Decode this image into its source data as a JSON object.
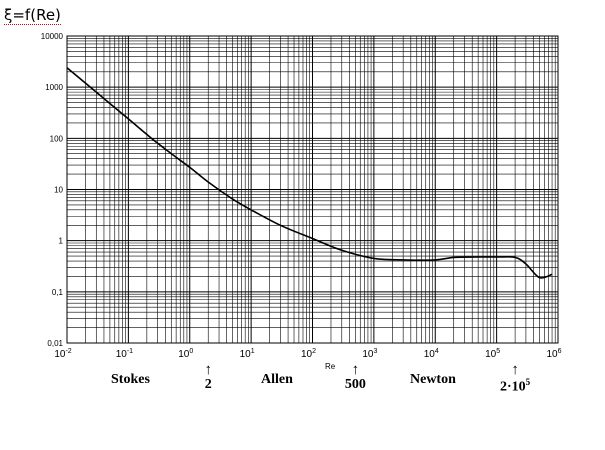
{
  "chart_data": {
    "type": "line",
    "title": "ξ=f(Re)",
    "xlabel": "Re",
    "ylabel": "",
    "x_scale": "log",
    "y_scale": "log",
    "xlim": [
      0.01,
      1000000
    ],
    "ylim": [
      0.01,
      10000
    ],
    "grid": true,
    "x_ticks": [
      {
        "base": "10",
        "exp": "-2"
      },
      {
        "base": "10",
        "exp": "-1"
      },
      {
        "base": "10",
        "exp": "0"
      },
      {
        "base": "10",
        "exp": "1"
      },
      {
        "base": "10",
        "exp": "2"
      },
      {
        "base": "10",
        "exp": "3"
      },
      {
        "base": "10",
        "exp": "4"
      },
      {
        "base": "10",
        "exp": "5"
      },
      {
        "base": "10",
        "exp": "6"
      }
    ],
    "y_ticks": [
      "0,01",
      "0,1",
      "1",
      "10",
      "100",
      "1000",
      "10000"
    ],
    "series": [
      {
        "x": [
          0.01,
          0.03,
          0.1,
          0.3,
          1,
          2,
          5,
          10,
          30,
          100,
          300,
          1000,
          3000,
          10000,
          20000,
          50000,
          100000,
          200000,
          300000,
          500000,
          800000
        ],
        "y": [
          2400,
          800,
          240,
          80,
          27,
          14,
          6.5,
          4,
          2,
          1.1,
          0.65,
          0.45,
          0.42,
          0.42,
          0.47,
          0.48,
          0.48,
          0.47,
          0.35,
          0.19,
          0.22
        ]
      }
    ],
    "regimes": [
      "Stokes",
      "Allen",
      "Newton"
    ],
    "markers": [
      {
        "label": "2",
        "x": 2
      },
      {
        "label": "500",
        "x": 500
      },
      {
        "label_base": "2·10",
        "label_exp": "5",
        "x": 200000
      }
    ]
  }
}
